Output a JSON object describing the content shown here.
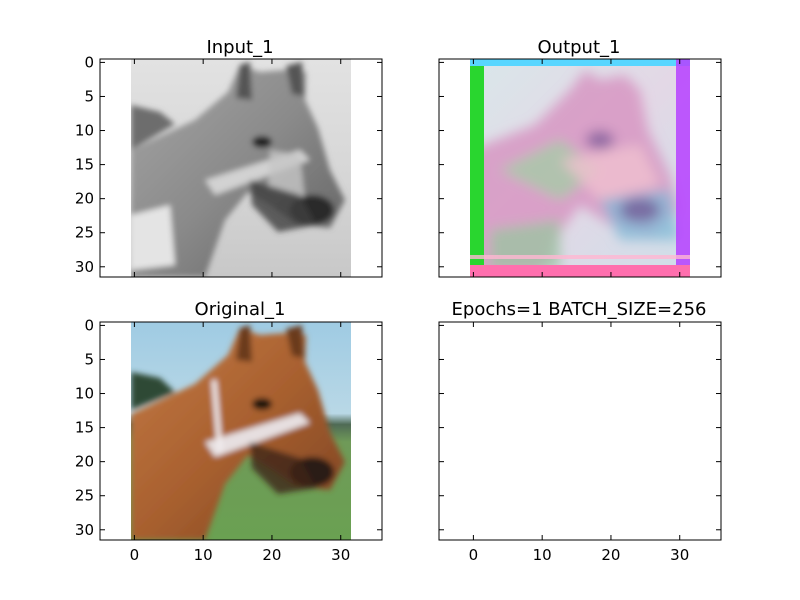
{
  "chart_data": [
    {
      "type": "image",
      "title": "Input_1",
      "image": "grayscale horse",
      "xlim": [
        -5,
        36
      ],
      "ylim": [
        31.5,
        -0.5
      ],
      "yticks": [
        0,
        5,
        10,
        15,
        20,
        25,
        30
      ],
      "xticks": [],
      "colors": {
        "background": "#dcdcdc",
        "subject": "#8f8f8f"
      }
    },
    {
      "type": "image",
      "title": "Output_1",
      "image": "reconstructed horse, noisy colors",
      "xlim": [
        -5,
        36
      ],
      "ylim": [
        31.5,
        -0.5
      ],
      "yticks": [],
      "xticks": [],
      "colors": {
        "left_edge": "#22dd22",
        "top_edge": "#44ccff",
        "bottom_edge": "#ff66aa"
      }
    },
    {
      "type": "image",
      "title": "Original_1",
      "image": "color horse",
      "xlim": [
        -5,
        36
      ],
      "ylim": [
        31.5,
        -0.5
      ],
      "yticks": [
        0,
        5,
        10,
        15,
        20,
        25,
        30
      ],
      "xticks": [
        0,
        10,
        20,
        30
      ],
      "colors": {
        "sky": "#9cc9e0",
        "grass": "#6e9a55",
        "horse": "#b36a3c"
      }
    },
    {
      "type": "image",
      "title": "Epochs=1 BATCH_SIZE=256",
      "image": "",
      "xlim": [
        -5,
        36
      ],
      "ylim": [
        31.5,
        -0.5
      ],
      "yticks": [],
      "xticks": [
        0,
        10,
        20,
        30
      ]
    }
  ]
}
